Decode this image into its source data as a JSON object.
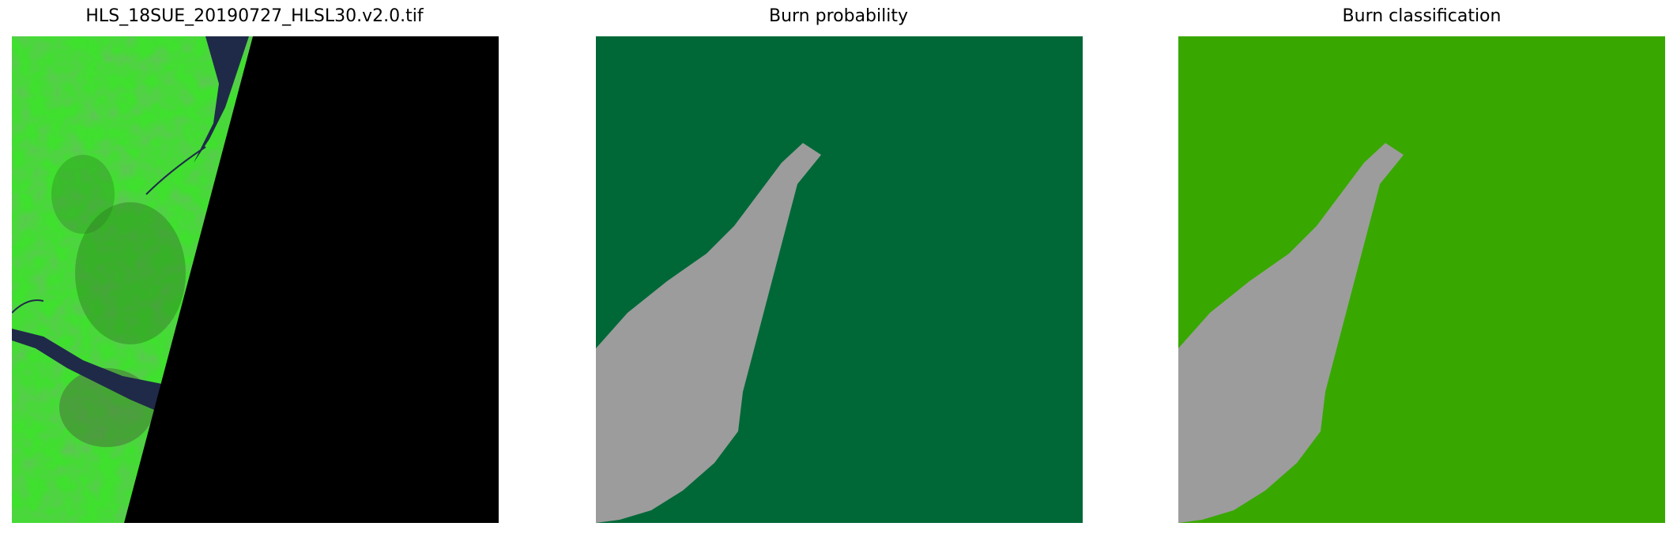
{
  "panels": [
    {
      "title": "HLS_18SUE_20190727_HLSL30.v2.0.tif"
    },
    {
      "title": "Burn probability"
    },
    {
      "title": "Burn classification"
    }
  ],
  "colors": {
    "no_data": "#000000",
    "water": "#0070ff",
    "cloud": "#ffffff",
    "cloud_shadow": "#9c9c9c",
    "unburned_probability": "#006837",
    "unburned_classification": "#38a800",
    "satellite_vegetation": "#3fe02e",
    "satellite_water": "#1f2a48"
  }
}
